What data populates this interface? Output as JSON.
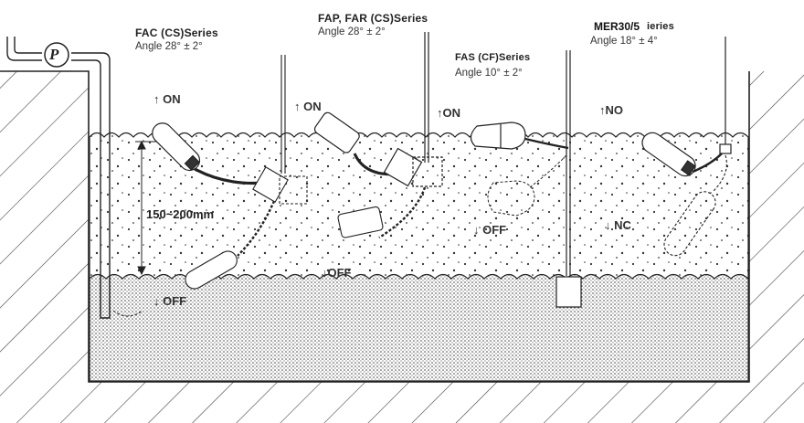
{
  "series": [
    {
      "name": "FAC (CS)Series",
      "angle": "Angle 28° ± 2°"
    },
    {
      "name": "FAP, FAR (CS)Series",
      "angle": "Angle 28° ± 2°"
    },
    {
      "name": "FAS (CF)Series",
      "angle": "Angle 10° ± 2°"
    },
    {
      "name": "ieries",
      "overlay": "MER30/5",
      "angle": "Angle 18° ± 4°"
    }
  ],
  "states": {
    "fac_on": "↑ ON",
    "fap_on": "↑ ON",
    "fas_on": "↑ON",
    "mer_on": "↑NO",
    "fac_off": "↓ OFF",
    "fap_off": "↓OFF",
    "fas_off": "↓ OFF",
    "mer_off": "↓ NC"
  },
  "pump_symbol": "P",
  "range_label": "150~200mm",
  "colors": {
    "ink": "#222222",
    "background": "#ffffff",
    "hatch": "#444444"
  }
}
